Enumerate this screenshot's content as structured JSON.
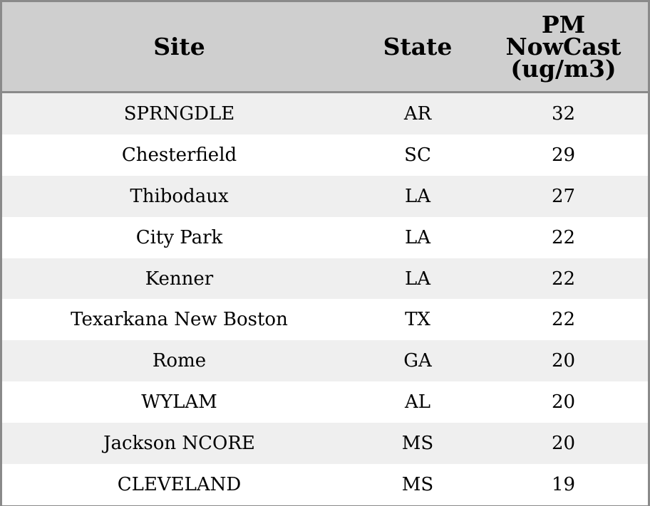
{
  "chart_data": {
    "type": "table",
    "columns": [
      "Site",
      "State",
      "PM\nNowCast\n(ug/m3)"
    ],
    "rows": [
      {
        "site": "SPRNGDLE",
        "state": "AR",
        "pm": "32"
      },
      {
        "site": "Chesterfield",
        "state": "SC",
        "pm": "29"
      },
      {
        "site": "Thibodaux",
        "state": "LA",
        "pm": "27"
      },
      {
        "site": "City Park",
        "state": "LA",
        "pm": "22"
      },
      {
        "site": "Kenner",
        "state": "LA",
        "pm": "22"
      },
      {
        "site": "Texarkana New Boston",
        "state": "TX",
        "pm": "22"
      },
      {
        "site": "Rome",
        "state": "GA",
        "pm": "20"
      },
      {
        "site": "WYLAM",
        "state": "AL",
        "pm": "20"
      },
      {
        "site": "Jackson NCORE",
        "state": "MS",
        "pm": "20"
      },
      {
        "site": "CLEVELAND",
        "state": "MS",
        "pm": "19"
      }
    ]
  },
  "header": {
    "site": "Site",
    "state": "State",
    "pm_line1": "PM",
    "pm_line2": "NowCast",
    "pm_line3": "(ug/m3)"
  },
  "colors": {
    "header_bg": "#cfcfcf",
    "stripe": "#efefef",
    "border": "#8a8a8a"
  }
}
